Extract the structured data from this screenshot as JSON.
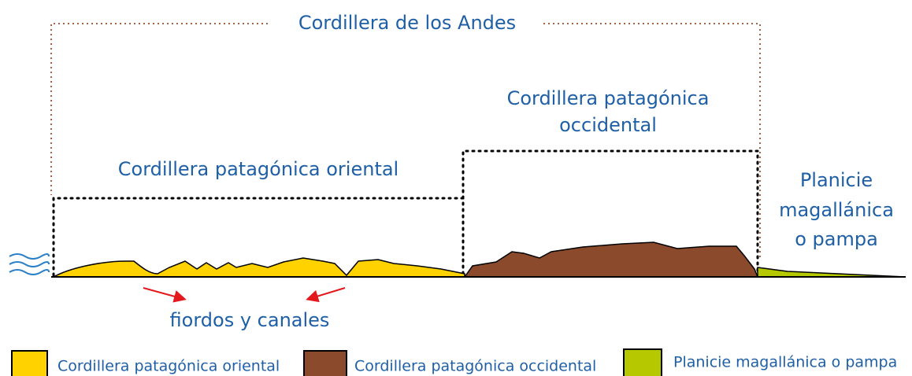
{
  "title": "Cordillera de los Andes",
  "regions": [
    {
      "label_lines": [
        "Cordillera patagónica oriental"
      ]
    },
    {
      "label_lines": [
        "Cordillera patagónica",
        "occidental"
      ]
    },
    {
      "label_lines": [
        "Planicie",
        "magallánica",
        "o pampa"
      ]
    }
  ],
  "annotation": "fiordos y canales",
  "legend": [
    "Cordillera patagónica oriental",
    "Cordillera patagónica occidental",
    "Planicie magallánica o pampa"
  ]
}
